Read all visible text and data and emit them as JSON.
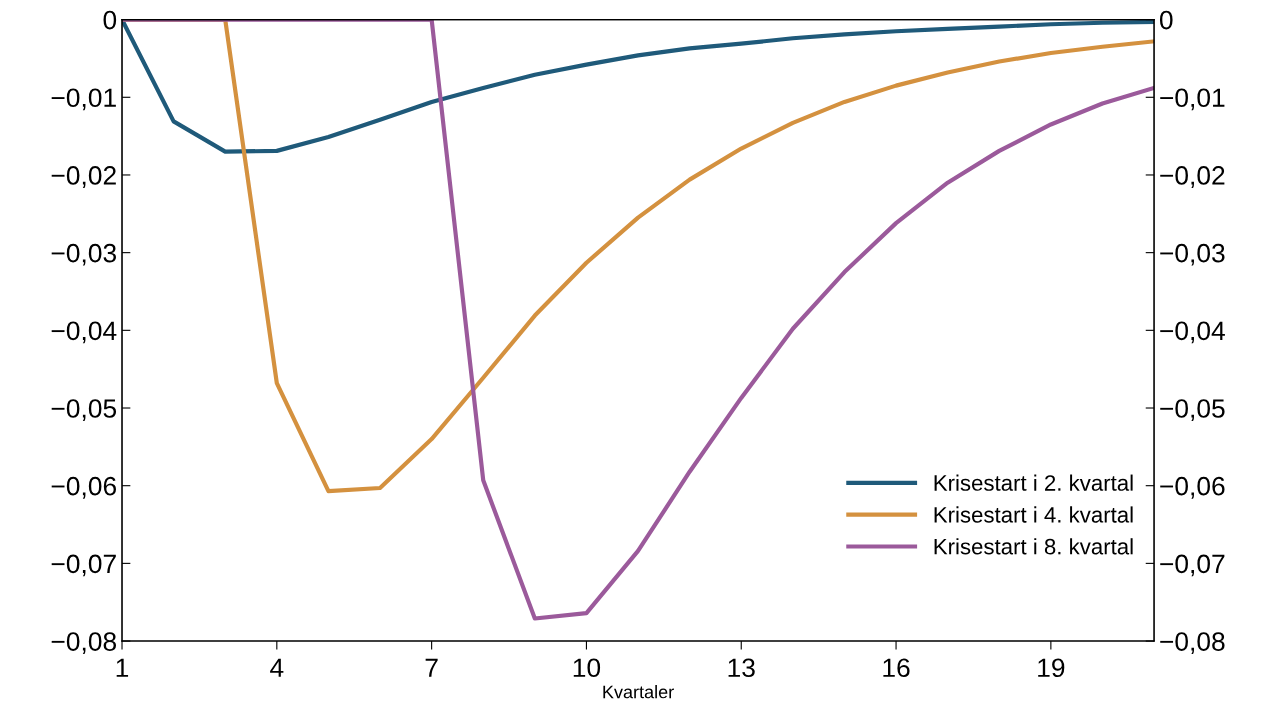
{
  "chart_data": {
    "type": "line",
    "xlabel": "Kvartaler",
    "x": [
      1,
      2,
      3,
      4,
      5,
      6,
      7,
      8,
      9,
      10,
      11,
      12,
      13,
      14,
      15,
      16,
      17,
      18,
      19,
      20,
      21
    ],
    "xlim": [
      1,
      21
    ],
    "xticks": [
      1,
      4,
      7,
      10,
      13,
      16,
      19
    ],
    "ylim": [
      -0.08,
      0
    ],
    "yticks": [
      {
        "value": 0,
        "label": "0"
      },
      {
        "value": -0.01,
        "label": "−0,01"
      },
      {
        "value": -0.02,
        "label": "−0,02"
      },
      {
        "value": -0.03,
        "label": "−0,03"
      },
      {
        "value": -0.04,
        "label": "−0,04"
      },
      {
        "value": -0.05,
        "label": "−0,05"
      },
      {
        "value": -0.06,
        "label": "−0,06"
      },
      {
        "value": -0.07,
        "label": "−0,07"
      },
      {
        "value": -0.08,
        "label": "−0,08"
      }
    ],
    "y2lim": [
      -0.08,
      0
    ],
    "y2ticks": [
      {
        "value": 0,
        "label": "0"
      },
      {
        "value": -0.01,
        "label": "−0,01"
      },
      {
        "value": -0.02,
        "label": "−0,02"
      },
      {
        "value": -0.03,
        "label": "−0,03"
      },
      {
        "value": -0.04,
        "label": "−0,04"
      },
      {
        "value": -0.05,
        "label": "−0,05"
      },
      {
        "value": -0.06,
        "label": "−0,06"
      },
      {
        "value": -0.07,
        "label": "−0,07"
      },
      {
        "value": -0.08,
        "label": "−0,08"
      }
    ],
    "grid": false,
    "legend": "lower right",
    "marker": "none",
    "line_style": "solid",
    "series": [
      {
        "name": "Krisestart i 2. kvartal",
        "color": "#1f5a7a",
        "values": [
          0,
          -0.0131,
          -0.017,
          -0.0169,
          -0.0151,
          -0.0129,
          -0.0106,
          -0.0088,
          -0.0071,
          -0.0058,
          -0.0046,
          -0.0037,
          -0.0031,
          -0.0024,
          -0.0019,
          -0.0015,
          -0.0012,
          -0.0009,
          -0.0006,
          -0.0004,
          -0.0003
        ]
      },
      {
        "name": "Krisestart i 4. kvartal",
        "color": "#d4913f",
        "values": [
          0,
          0,
          0,
          -0.0468,
          -0.0607,
          -0.0603,
          -0.054,
          -0.0461,
          -0.0381,
          -0.0313,
          -0.0255,
          -0.0206,
          -0.0166,
          -0.0133,
          -0.0106,
          -0.0085,
          -0.0068,
          -0.0054,
          -0.0043,
          -0.0035,
          -0.0028
        ]
      },
      {
        "name": "Krisestart i 8. kvartal",
        "color": "#9b5a9b",
        "values": [
          0,
          0,
          0,
          0,
          0,
          0,
          0,
          -0.0593,
          -0.0771,
          -0.0764,
          -0.0684,
          -0.0582,
          -0.0487,
          -0.0398,
          -0.0325,
          -0.0262,
          -0.021,
          -0.0169,
          -0.0135,
          -0.0108,
          -0.0088
        ]
      }
    ]
  }
}
